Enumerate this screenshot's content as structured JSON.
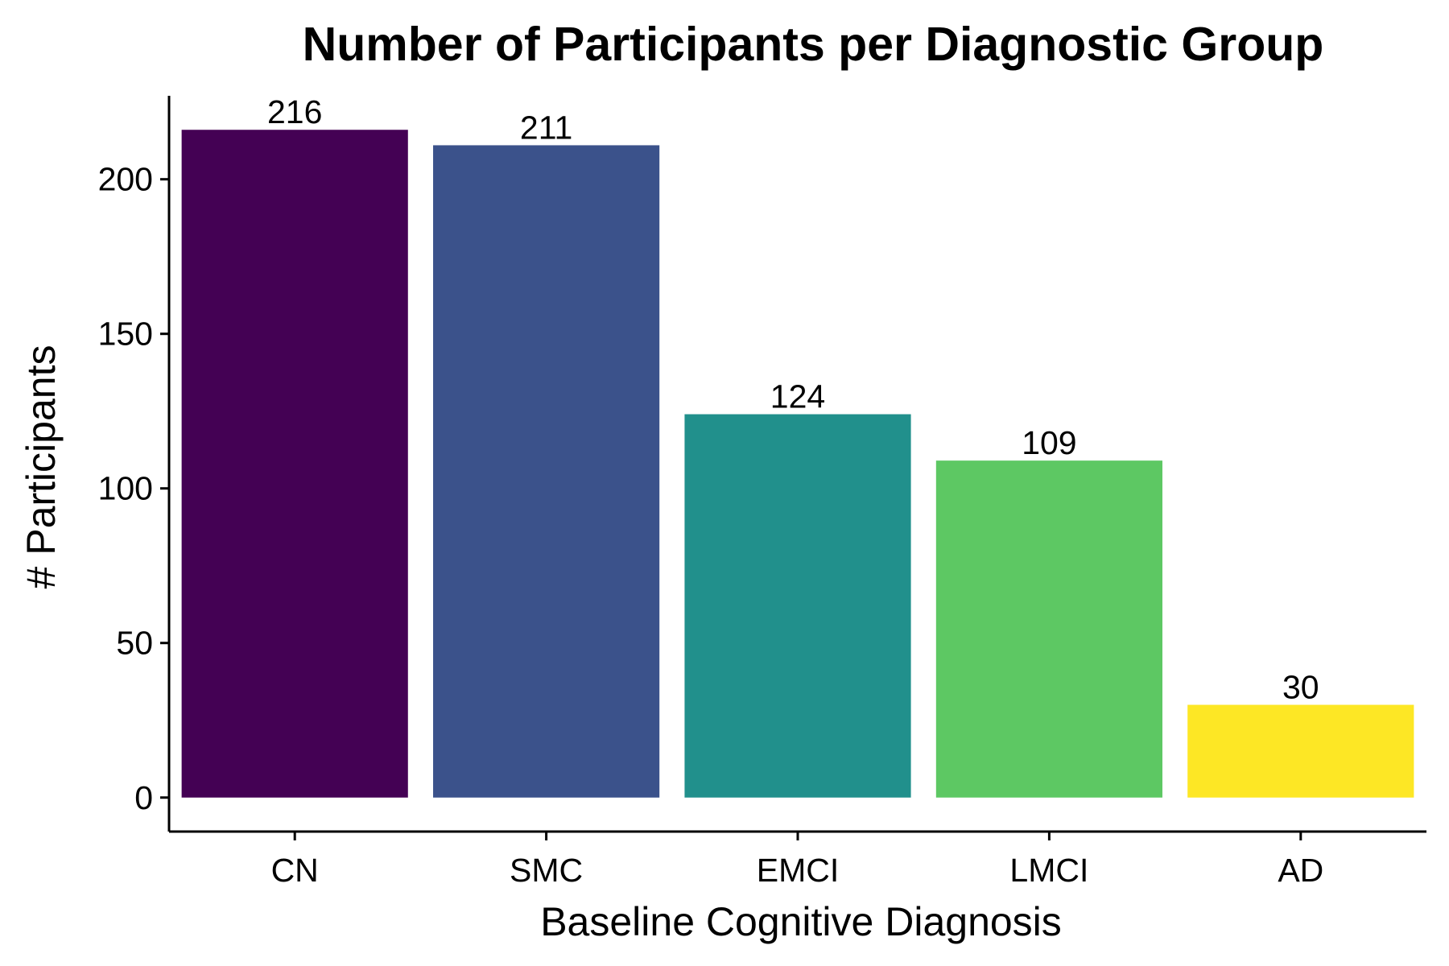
{
  "chart_data": {
    "type": "bar",
    "title": "Number of Participants per Diagnostic Group",
    "xlabel": "Baseline Cognitive Diagnosis",
    "ylabel": "# Participants",
    "categories": [
      "CN",
      "SMC",
      "EMCI",
      "LMCI",
      "AD"
    ],
    "values": [
      216,
      211,
      124,
      109,
      30
    ],
    "data_labels": [
      "216",
      "211",
      "124",
      "109",
      "30"
    ],
    "colors": [
      "#440154",
      "#3B528B",
      "#21908C",
      "#5DC863",
      "#FDE725"
    ],
    "ylim": [
      -11,
      227
    ],
    "yticks": [
      0,
      50,
      100,
      150,
      200
    ],
    "ytick_labels": [
      "0",
      "50",
      "100",
      "150",
      "200"
    ],
    "grid": false,
    "legend": "none"
  }
}
